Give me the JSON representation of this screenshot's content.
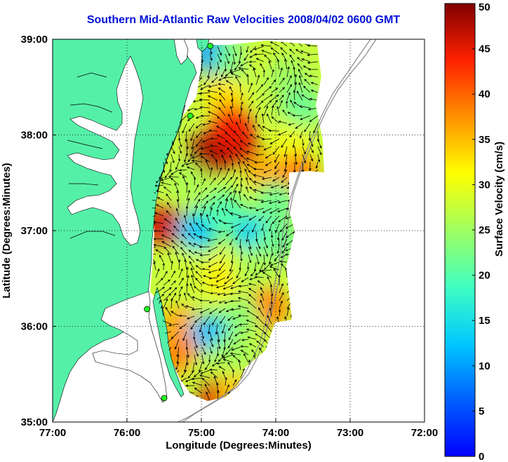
{
  "title": "Southern Mid-Atlantic Raw Velocities 2008/04/02 0600 GMT",
  "chart_data": {
    "type": "vector-field-map",
    "xlabel": "Longitude (Degrees:Minutes)",
    "ylabel": "Latitude (Degrees:Minutes)",
    "xlim": [
      -77,
      -72
    ],
    "ylim": [
      35,
      39
    ],
    "x_ticks": [
      {
        "value": -77,
        "label": "77:00"
      },
      {
        "value": -76,
        "label": "76:00"
      },
      {
        "value": -75,
        "label": "75:00"
      },
      {
        "value": -74,
        "label": "74:00"
      },
      {
        "value": -73,
        "label": "73:00"
      },
      {
        "value": -72,
        "label": "72:00"
      }
    ],
    "y_ticks": [
      {
        "value": 39,
        "label": "39:00"
      },
      {
        "value": 38,
        "label": "38:00"
      },
      {
        "value": 37,
        "label": "37:00"
      },
      {
        "value": 36,
        "label": "36:00"
      },
      {
        "value": 35,
        "label": "35:00"
      }
    ],
    "grid": "dotted",
    "colorbar": {
      "label": "Surface Velocity (cm/s)",
      "min": 0,
      "max": 50,
      "ticks": [
        {
          "value": 0,
          "label": "0"
        },
        {
          "value": 5,
          "label": "5"
        },
        {
          "value": 10,
          "label": "10"
        },
        {
          "value": 15,
          "label": "15"
        },
        {
          "value": 20,
          "label": "20"
        },
        {
          "value": 25,
          "label": "25"
        },
        {
          "value": 30,
          "label": "30"
        },
        {
          "value": 35,
          "label": "35"
        },
        {
          "value": 40,
          "label": "40"
        },
        {
          "value": 45,
          "label": "45"
        },
        {
          "value": 50,
          "label": "50"
        }
      ],
      "colormap": "jet",
      "placement": "right"
    },
    "land_color": "#55f0a8",
    "stations": [
      {
        "lon": -74.88,
        "lat": 38.93
      },
      {
        "lon": -75.15,
        "lat": 38.2
      },
      {
        "lon": -75.73,
        "lat": 36.18
      },
      {
        "lon": -75.5,
        "lat": 35.25
      }
    ],
    "speed_regions": [
      {
        "lon": -74.85,
        "lat": 38.85,
        "speed": 10
      },
      {
        "lon": -74.55,
        "lat": 38.8,
        "speed": 22
      },
      {
        "lon": -74.2,
        "lat": 38.8,
        "speed": 28
      },
      {
        "lon": -73.85,
        "lat": 38.6,
        "speed": 25
      },
      {
        "lon": -73.65,
        "lat": 38.3,
        "speed": 22
      },
      {
        "lon": -74.7,
        "lat": 38.4,
        "speed": 33
      },
      {
        "lon": -74.5,
        "lat": 37.9,
        "speed": 46
      },
      {
        "lon": -74.9,
        "lat": 37.8,
        "speed": 48
      },
      {
        "lon": -74.6,
        "lat": 38.1,
        "speed": 44
      },
      {
        "lon": -74.1,
        "lat": 37.6,
        "speed": 36
      },
      {
        "lon": -73.8,
        "lat": 37.9,
        "speed": 30
      },
      {
        "lon": -73.7,
        "lat": 37.6,
        "speed": 38
      },
      {
        "lon": -75.2,
        "lat": 37.5,
        "speed": 26
      },
      {
        "lon": -75.5,
        "lat": 37.05,
        "speed": 46
      },
      {
        "lon": -75.05,
        "lat": 37.0,
        "speed": 13
      },
      {
        "lon": -74.7,
        "lat": 37.2,
        "speed": 20
      },
      {
        "lon": -74.3,
        "lat": 36.95,
        "speed": 14
      },
      {
        "lon": -74.0,
        "lat": 37.3,
        "speed": 22
      },
      {
        "lon": -73.95,
        "lat": 36.9,
        "speed": 22
      },
      {
        "lon": -75.2,
        "lat": 36.6,
        "speed": 28
      },
      {
        "lon": -74.7,
        "lat": 36.5,
        "speed": 32
      },
      {
        "lon": -74.3,
        "lat": 36.6,
        "speed": 26
      },
      {
        "lon": -74.1,
        "lat": 36.2,
        "speed": 38
      },
      {
        "lon": -74.5,
        "lat": 36.1,
        "speed": 24
      },
      {
        "lon": -75.3,
        "lat": 36.0,
        "speed": 36
      },
      {
        "lon": -74.9,
        "lat": 35.9,
        "speed": 12
      },
      {
        "lon": -74.6,
        "lat": 35.7,
        "speed": 25
      },
      {
        "lon": -75.3,
        "lat": 35.7,
        "speed": 38
      },
      {
        "lon": -74.9,
        "lat": 35.5,
        "speed": 27
      },
      {
        "lon": -74.8,
        "lat": 35.25,
        "speed": 46
      },
      {
        "lon": -74.5,
        "lat": 35.3,
        "speed": 34
      }
    ]
  }
}
